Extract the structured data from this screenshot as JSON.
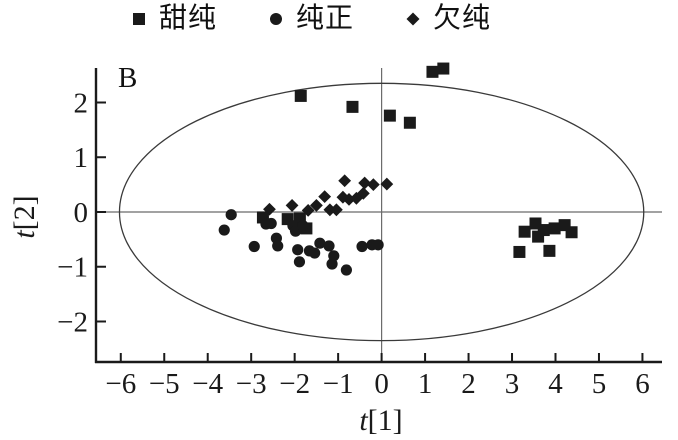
{
  "panel_label": "B",
  "legend": {
    "items": [
      {
        "label": "甜纯",
        "marker": "square"
      },
      {
        "label": "纯正",
        "marker": "circle"
      },
      {
        "label": "欠纯",
        "marker": "diamond"
      }
    ]
  },
  "chart_data": {
    "type": "scatter",
    "title": "",
    "xlabel": "t[1]",
    "ylabel": "t[2]",
    "xlim": [
      -6.57,
      6.45
    ],
    "ylim": [
      -2.74,
      2.63
    ],
    "x_ticks": [
      -6,
      -5,
      -4,
      -3,
      -2,
      -1,
      0,
      1,
      2,
      3,
      4,
      5,
      6
    ],
    "y_ticks": [
      -2,
      -1,
      0,
      1,
      2
    ],
    "grid": false,
    "crosshair_at_zero": true,
    "hotelling_ellipse": {
      "cx": 0,
      "cy": 0,
      "rx": 6.03,
      "ry": 2.35
    },
    "point_color": "#1a1a1a",
    "axis_color": "#1a1a1a",
    "line_color": "#6b6b6b",
    "ellipse_color": "#3a3a3a",
    "legend_position": "top-center",
    "series": [
      {
        "name": "甜纯",
        "marker": "square",
        "points": [
          [
            -1.86,
            2.12
          ],
          [
            -0.67,
            1.92
          ],
          [
            0.19,
            1.76
          ],
          [
            0.65,
            1.63
          ],
          [
            1.17,
            2.56
          ],
          [
            1.42,
            2.62
          ],
          [
            -2.73,
            -0.1
          ],
          [
            -2.16,
            -0.13
          ],
          [
            -1.88,
            -0.12
          ],
          [
            -1.73,
            -0.3
          ],
          [
            3.17,
            -0.73
          ],
          [
            3.29,
            -0.36
          ],
          [
            3.54,
            -0.21
          ],
          [
            3.6,
            -0.45
          ],
          [
            3.73,
            -0.33
          ],
          [
            3.86,
            -0.71
          ],
          [
            3.98,
            -0.3
          ],
          [
            4.21,
            -0.24
          ],
          [
            4.37,
            -0.37
          ]
        ]
      },
      {
        "name": "纯正",
        "marker": "circle",
        "points": [
          [
            -3.62,
            -0.33
          ],
          [
            -3.46,
            -0.05
          ],
          [
            -2.93,
            -0.63
          ],
          [
            -2.66,
            -0.22
          ],
          [
            -2.54,
            -0.21
          ],
          [
            -2.42,
            -0.48
          ],
          [
            -2.39,
            -0.62
          ],
          [
            -2.04,
            -0.25
          ],
          [
            -1.98,
            -0.35
          ],
          [
            -1.93,
            -0.69
          ],
          [
            -1.89,
            -0.91
          ],
          [
            -1.81,
            -0.25
          ],
          [
            -1.66,
            -0.71
          ],
          [
            -1.54,
            -0.75
          ],
          [
            -1.42,
            -0.57
          ],
          [
            -1.21,
            -0.62
          ],
          [
            -1.14,
            -0.95
          ],
          [
            -1.1,
            -0.8
          ],
          [
            -0.81,
            -1.06
          ],
          [
            -0.45,
            -0.63
          ],
          [
            -0.22,
            -0.6
          ],
          [
            -0.08,
            -0.6
          ]
        ]
      },
      {
        "name": "欠纯",
        "marker": "diamond",
        "points": [
          [
            -2.58,
            0.05
          ],
          [
            -2.06,
            0.12
          ],
          [
            -1.69,
            0.03
          ],
          [
            -1.5,
            0.12
          ],
          [
            -1.31,
            0.28
          ],
          [
            -1.19,
            0.04
          ],
          [
            -1.04,
            0.04
          ],
          [
            -0.89,
            0.27
          ],
          [
            -0.85,
            0.57
          ],
          [
            -0.75,
            0.23
          ],
          [
            -0.58,
            0.25
          ],
          [
            -0.42,
            0.34
          ],
          [
            -0.39,
            0.53
          ],
          [
            -0.19,
            0.5
          ],
          [
            0.12,
            0.51
          ]
        ]
      }
    ]
  }
}
